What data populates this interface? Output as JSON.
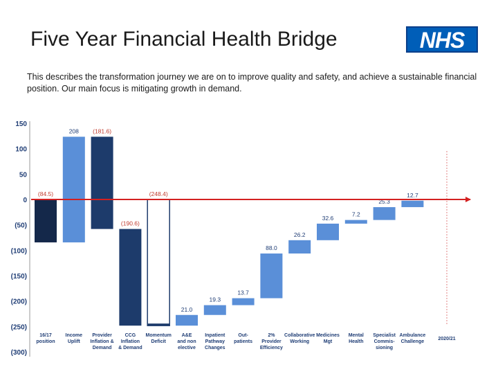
{
  "slide": {
    "title": "Five Year Financial Health Bridge",
    "logo_text": "NHS",
    "description": "This describes the transformation journey we are on to improve quality and safety, and achieve a sustainable financial position.  Our main focus is mitigating growth in demand."
  },
  "chart_data": {
    "type": "waterfall",
    "title": "",
    "xlabel": "",
    "ylabel": "",
    "ylim": [
      -300,
      150
    ],
    "y_ticks": [
      150,
      100,
      50,
      0,
      -50,
      -100,
      -150,
      -200,
      -250,
      -300
    ],
    "y_tick_labels": [
      "150",
      "100",
      "50",
      "0",
      "(50)",
      "(100)",
      "(150)",
      "(200)",
      "(250)",
      "(300)"
    ],
    "grid": false,
    "bars": [
      {
        "category": "16/17 position",
        "category_lines": [
          "16/17",
          "position"
        ],
        "start": 0,
        "end": -84.5,
        "label": "(84.5)",
        "color": "#14284a",
        "style": "filled"
      },
      {
        "category": "Income Uplift",
        "category_lines": [
          "Income",
          "Uplift"
        ],
        "start": -84.5,
        "end": 123.5,
        "label": "208",
        "color": "#5a8fd8",
        "style": "filled"
      },
      {
        "category": "Provider Inflation & Demand",
        "category_lines": [
          "Provider",
          "Inflation &",
          "Demand"
        ],
        "start": 123.5,
        "end": -58.1,
        "label": "(181.6)",
        "color": "#1d3b6b",
        "style": "filled"
      },
      {
        "category": "CCG Inflation & Demand",
        "category_lines": [
          "CCG",
          "Inflation",
          "& Demand"
        ],
        "start": -58.1,
        "end": -248.4,
        "label": "(190.6)",
        "color": "#1d3b6b",
        "style": "filled"
      },
      {
        "category": "Momentum Deficit",
        "category_lines": [
          "Momentum",
          "Deficit"
        ],
        "start": 0,
        "end": -248.4,
        "label": "(248.4)",
        "color": "#1d3b6b",
        "style": "outline"
      },
      {
        "category": "A&E and non elective",
        "category_lines": [
          "A&E",
          "and non",
          "elective"
        ],
        "start": -248.4,
        "end": -227.4,
        "label": "21.0",
        "color": "#5a8fd8",
        "style": "filled"
      },
      {
        "category": "Inpatient Pathway Changes",
        "category_lines": [
          "Inpatient",
          "Pathway",
          "Changes"
        ],
        "start": -227.4,
        "end": -208.1,
        "label": "19.3",
        "color": "#5a8fd8",
        "style": "filled"
      },
      {
        "category": "Out-patients",
        "category_lines": [
          "Out-",
          "patients"
        ],
        "start": -208.1,
        "end": -194.4,
        "label": "13.7",
        "color": "#5a8fd8",
        "style": "filled"
      },
      {
        "category": "2% Provider Efficiency",
        "category_lines": [
          "2%",
          "Provider",
          "Efficiency"
        ],
        "start": -194.4,
        "end": -106.4,
        "label": "88.0",
        "color": "#5a8fd8",
        "style": "filled"
      },
      {
        "category": "Collaborative Working",
        "category_lines": [
          "Collaborative",
          "Working"
        ],
        "start": -106.4,
        "end": -80.2,
        "label": "26.2",
        "color": "#5a8fd8",
        "style": "filled"
      },
      {
        "category": "Medicines Mgt",
        "category_lines": [
          "Medicines",
          "Mgt"
        ],
        "start": -80.2,
        "end": -47.6,
        "label": "32.6",
        "color": "#5a8fd8",
        "style": "filled"
      },
      {
        "category": "Mental Health",
        "category_lines": [
          "Mental",
          "Health"
        ],
        "start": -47.6,
        "end": -40.4,
        "label": "7.2",
        "color": "#5a8fd8",
        "style": "filled"
      },
      {
        "category": "Specialist Commis-sioning",
        "category_lines": [
          "Specialist",
          "Commis-",
          "sioning"
        ],
        "start": -40.4,
        "end": -15.1,
        "label": "25.3",
        "color": "#5a8fd8",
        "style": "filled"
      },
      {
        "category": "Ambulance Challenge",
        "category_lines": [
          "Ambulance",
          "Challenge"
        ],
        "start": -15.1,
        "end": -2.4,
        "label": "12.7",
        "color": "#5a8fd8",
        "style": "filled"
      }
    ],
    "end_label": "2020/21",
    "colors": {
      "negative_label": "#c0392b",
      "positive_label": "#1f3d75",
      "axis_text": "#1f3d75",
      "zero_arrow": "#d42020",
      "divider": "#e08080"
    }
  }
}
